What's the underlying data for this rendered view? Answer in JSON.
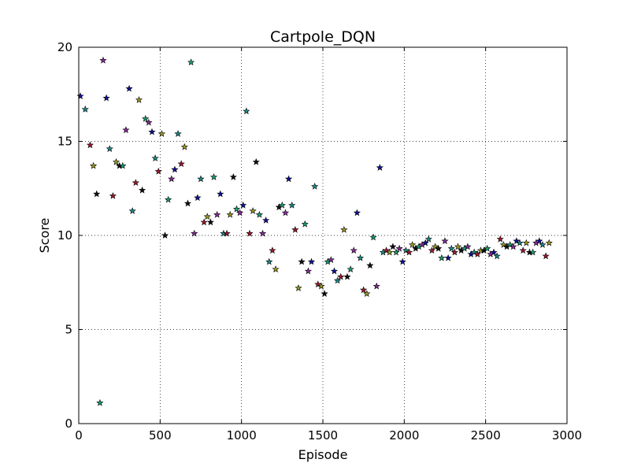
{
  "chart_data": {
    "type": "scatter",
    "title": "Cartpole_DQN",
    "xlabel": "Episode",
    "ylabel": "Score",
    "xlim": [
      0,
      3000
    ],
    "ylim": [
      0,
      20
    ],
    "xticks": [
      0,
      500,
      1000,
      1500,
      2000,
      2500,
      3000
    ],
    "yticks": [
      0,
      5,
      10,
      15,
      20
    ],
    "xtick_labels": [
      "0",
      "500",
      "1000",
      "1500",
      "2000",
      "2500",
      "3000"
    ],
    "ytick_labels": [
      "0",
      "5",
      "10",
      "15",
      "20"
    ],
    "grid": true,
    "marker": "star",
    "marker_colors": [
      "#1010a0",
      "#1a8a8a",
      "#a01830",
      "#9a9a20",
      "#101010",
      "#18a070",
      "#8a2a9a"
    ],
    "points": [
      [
        10,
        17.4
      ],
      [
        40,
        16.7
      ],
      [
        70,
        14.8
      ],
      [
        90,
        13.7
      ],
      [
        110,
        12.2
      ],
      [
        130,
        1.1
      ],
      [
        150,
        19.3
      ],
      [
        170,
        17.3
      ],
      [
        190,
        14.6
      ],
      [
        210,
        12.1
      ],
      [
        230,
        13.9
      ],
      [
        250,
        13.7
      ],
      [
        270,
        13.7
      ],
      [
        290,
        15.6
      ],
      [
        310,
        17.8
      ],
      [
        330,
        11.3
      ],
      [
        350,
        12.8
      ],
      [
        370,
        17.2
      ],
      [
        390,
        12.4
      ],
      [
        410,
        16.2
      ],
      [
        430,
        16.0
      ],
      [
        450,
        15.5
      ],
      [
        470,
        14.1
      ],
      [
        490,
        13.4
      ],
      [
        510,
        15.4
      ],
      [
        530,
        10.0
      ],
      [
        550,
        11.9
      ],
      [
        570,
        13.0
      ],
      [
        590,
        13.5
      ],
      [
        610,
        15.4
      ],
      [
        630,
        13.8
      ],
      [
        650,
        14.7
      ],
      [
        670,
        11.7
      ],
      [
        690,
        19.2
      ],
      [
        710,
        10.1
      ],
      [
        730,
        12.0
      ],
      [
        750,
        13.0
      ],
      [
        770,
        10.7
      ],
      [
        790,
        11.0
      ],
      [
        810,
        10.7
      ],
      [
        830,
        13.1
      ],
      [
        850,
        11.1
      ],
      [
        870,
        12.2
      ],
      [
        890,
        10.1
      ],
      [
        910,
        10.1
      ],
      [
        930,
        11.1
      ],
      [
        950,
        13.1
      ],
      [
        970,
        11.4
      ],
      [
        990,
        11.2
      ],
      [
        1010,
        11.6
      ],
      [
        1030,
        16.6
      ],
      [
        1050,
        10.1
      ],
      [
        1070,
        11.3
      ],
      [
        1090,
        13.9
      ],
      [
        1110,
        11.1
      ],
      [
        1130,
        10.1
      ],
      [
        1150,
        10.8
      ],
      [
        1170,
        8.6
      ],
      [
        1190,
        9.2
      ],
      [
        1210,
        8.2
      ],
      [
        1230,
        11.5
      ],
      [
        1250,
        11.6
      ],
      [
        1270,
        11.2
      ],
      [
        1290,
        13.0
      ],
      [
        1310,
        11.6
      ],
      [
        1330,
        10.3
      ],
      [
        1350,
        7.2
      ],
      [
        1370,
        8.6
      ],
      [
        1390,
        10.6
      ],
      [
        1410,
        8.1
      ],
      [
        1430,
        8.6
      ],
      [
        1450,
        12.6
      ],
      [
        1470,
        7.4
      ],
      [
        1490,
        7.3
      ],
      [
        1510,
        6.9
      ],
      [
        1530,
        8.6
      ],
      [
        1550,
        8.7
      ],
      [
        1570,
        8.1
      ],
      [
        1590,
        7.6
      ],
      [
        1610,
        7.8
      ],
      [
        1630,
        10.3
      ],
      [
        1650,
        7.8
      ],
      [
        1670,
        8.2
      ],
      [
        1690,
        9.2
      ],
      [
        1710,
        11.2
      ],
      [
        1730,
        8.8
      ],
      [
        1750,
        7.1
      ],
      [
        1770,
        6.9
      ],
      [
        1790,
        8.4
      ],
      [
        1810,
        9.9
      ],
      [
        1830,
        7.3
      ],
      [
        1850,
        13.6
      ],
      [
        1870,
        9.1
      ],
      [
        1890,
        9.2
      ],
      [
        1910,
        9.1
      ],
      [
        1930,
        9.4
      ],
      [
        1950,
        9.1
      ],
      [
        1970,
        9.3
      ],
      [
        1990,
        8.6
      ],
      [
        2010,
        9.2
      ],
      [
        2030,
        9.1
      ],
      [
        2050,
        9.5
      ],
      [
        2070,
        9.3
      ],
      [
        2090,
        9.4
      ],
      [
        2110,
        9.5
      ],
      [
        2130,
        9.6
      ],
      [
        2150,
        9.8
      ],
      [
        2170,
        9.2
      ],
      [
        2190,
        9.4
      ],
      [
        2210,
        9.3
      ],
      [
        2230,
        8.8
      ],
      [
        2250,
        9.7
      ],
      [
        2270,
        8.8
      ],
      [
        2290,
        9.3
      ],
      [
        2310,
        9.1
      ],
      [
        2330,
        9.4
      ],
      [
        2350,
        9.2
      ],
      [
        2370,
        9.3
      ],
      [
        2390,
        9.4
      ],
      [
        2410,
        9.0
      ],
      [
        2430,
        9.1
      ],
      [
        2450,
        9.0
      ],
      [
        2470,
        9.2
      ],
      [
        2490,
        9.2
      ],
      [
        2510,
        9.3
      ],
      [
        2530,
        9.0
      ],
      [
        2550,
        9.1
      ],
      [
        2570,
        8.9
      ],
      [
        2590,
        9.8
      ],
      [
        2610,
        9.5
      ],
      [
        2630,
        9.4
      ],
      [
        2650,
        9.5
      ],
      [
        2670,
        9.4
      ],
      [
        2690,
        9.7
      ],
      [
        2710,
        9.6
      ],
      [
        2730,
        9.2
      ],
      [
        2750,
        9.6
      ],
      [
        2770,
        9.1
      ],
      [
        2790,
        9.1
      ],
      [
        2810,
        9.6
      ],
      [
        2830,
        9.7
      ],
      [
        2850,
        9.5
      ],
      [
        2870,
        8.9
      ],
      [
        2890,
        9.6
      ]
    ]
  }
}
